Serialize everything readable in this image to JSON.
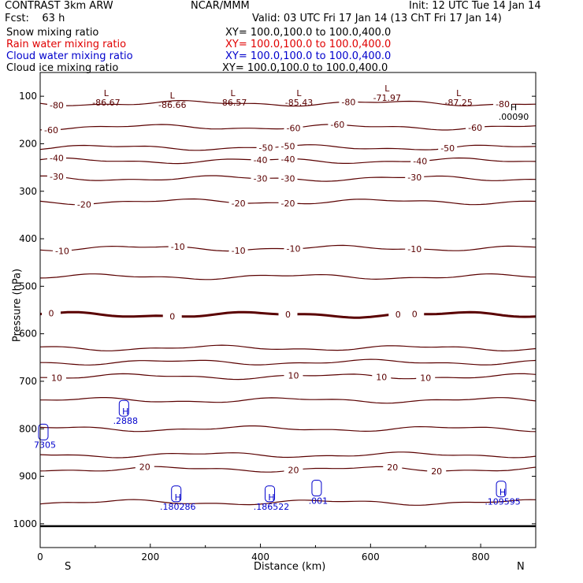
{
  "header": {
    "left1": "CONTRAST  3km ARW",
    "center1": "NCAR/MMM",
    "right1": "Init: 12 UTC Tue 14 Jan 14",
    "left2": "Fcst:    63 h",
    "right2": "Valid: 03 UTC Fri 17 Jan 14 (13 ChT Fri 17 Jan 14)"
  },
  "fields": [
    {
      "name": "Snow mixing ratio",
      "xy": "XY= 100.0,100.0 to 100.0,400.0",
      "color": "#000000"
    },
    {
      "name": "Rain water mixing ratio",
      "xy": "XY= 100.0,100.0 to 100.0,400.0",
      "color": "#e00000"
    },
    {
      "name": "Cloud water mixing ratio",
      "xy": "XY= 100.0,100.0 to 100.0,400.0",
      "color": "#0000cc"
    },
    {
      "name": "Cloud ice mixing ratio",
      "xy": "XY= 100.0,100.0 to 100.0,400.0",
      "color": "#000000"
    }
  ],
  "chart_data": {
    "type": "contour",
    "xlabel": "Distance (km)",
    "ylabel": "Pressure (hPa)",
    "xlim": [
      0,
      900
    ],
    "ylim": [
      1050,
      50
    ],
    "x_ticks": [
      0,
      200,
      400,
      600,
      800
    ],
    "y_ticks": [
      100,
      200,
      300,
      400,
      500,
      600,
      700,
      800,
      900,
      1000
    ],
    "left_end_label": "S",
    "right_end_label": "N",
    "temperature_contours": [
      {
        "pressure": 115,
        "label": "-80",
        "label_x": [
          30,
          560,
          840
        ]
      },
      {
        "pressure": 165,
        "label": "-60",
        "label_x": [
          20,
          460,
          540,
          790
        ]
      },
      {
        "pressure": 208,
        "label": "-50",
        "label_x": [
          410,
          450,
          740
        ]
      },
      {
        "pressure": 236,
        "label": "-40",
        "label_x": [
          30,
          400,
          450,
          690
        ]
      },
      {
        "pressure": 273,
        "label": "-30",
        "label_x": [
          30,
          400,
          450,
          680
        ]
      },
      {
        "pressure": 322,
        "label": "-20",
        "label_x": [
          80,
          360,
          450
        ]
      },
      {
        "pressure": 420,
        "label": "-10",
        "label_x": [
          40,
          250,
          360,
          460,
          680
        ]
      },
      {
        "pressure": 480,
        "label": "",
        "label_x": []
      },
      {
        "pressure": 560,
        "label": "0",
        "label_x": [
          20,
          240,
          450,
          650,
          680
        ],
        "bold": true
      },
      {
        "pressure": 630,
        "label": "",
        "label_x": []
      },
      {
        "pressure": 660,
        "label": "",
        "label_x": []
      },
      {
        "pressure": 690,
        "label": "10",
        "label_x": [
          30,
          460,
          620,
          700
        ]
      },
      {
        "pressure": 740,
        "label": "",
        "label_x": []
      },
      {
        "pressure": 800,
        "label": "",
        "label_x": []
      },
      {
        "pressure": 855,
        "label": "",
        "label_x": []
      },
      {
        "pressure": 885,
        "label": "20",
        "label_x": [
          190,
          460,
          640,
          720
        ]
      },
      {
        "pressure": 955,
        "label": "",
        "label_x": []
      }
    ],
    "minima": [
      {
        "symbol": "L",
        "value": "-86.67",
        "x": 120,
        "p": 100
      },
      {
        "symbol": "L",
        "value": "-86.66",
        "x": 240,
        "p": 105
      },
      {
        "symbol": "L",
        "value": "-86.57",
        "x": 350,
        "p": 100
      },
      {
        "symbol": "L",
        "value": "-85.43",
        "x": 470,
        "p": 100
      },
      {
        "symbol": "L",
        "value": "-71.97",
        "x": 630,
        "p": 90
      },
      {
        "symbol": "L",
        "value": "-87.25",
        "x": 760,
        "p": 100
      }
    ],
    "cloud_water_maxima": [
      {
        "symbol": "H",
        "value": ".2888",
        "x": 155,
        "p": 790
      },
      {
        "symbol": "",
        "value": "7305",
        "x": 0,
        "p": 840
      },
      {
        "symbol": "H",
        "value": ".180286",
        "x": 250,
        "p": 970
      },
      {
        "symbol": "H",
        "value": ".186522",
        "x": 420,
        "p": 970
      },
      {
        "symbol": "",
        "value": ".001",
        "x": 505,
        "p": 958
      },
      {
        "symbol": "H",
        "value": ".109595",
        "x": 840,
        "p": 960
      }
    ],
    "ice_max": {
      "symbol": "H",
      "value": ".00090",
      "x": 860,
      "p": 130
    }
  },
  "colors": {
    "contour": "#5a0000",
    "cloud_water": "#0000cc",
    "rain": "#e00000",
    "axis": "#000000"
  }
}
